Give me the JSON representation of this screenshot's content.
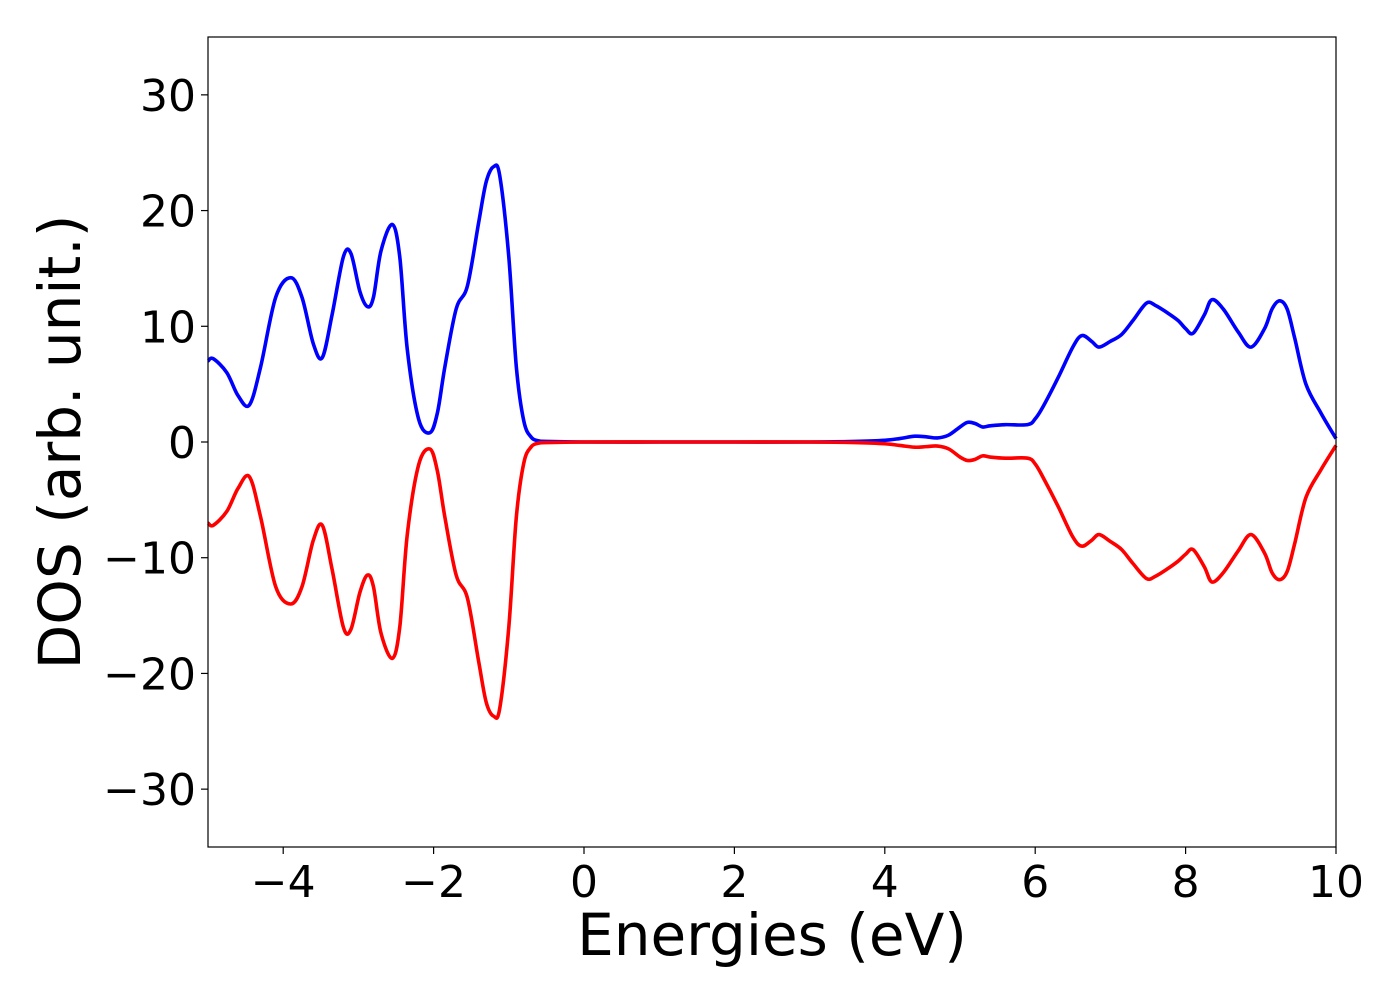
{
  "chart_data": {
    "type": "line",
    "xlabel": "Energies (eV)",
    "ylabel": "DOS (arb. unit.)",
    "xlim": [
      -5,
      10
    ],
    "ylim": [
      -35,
      35
    ],
    "x_ticks": [
      -4,
      -2,
      0,
      2,
      4,
      6,
      8,
      10
    ],
    "x_tick_labels": [
      "−4",
      "−2",
      "0",
      "2",
      "4",
      "6",
      "8",
      "10"
    ],
    "y_ticks": [
      30,
      20,
      10,
      0,
      -10,
      -20,
      -30
    ],
    "y_tick_labels": [
      "30",
      "20",
      "10",
      "0",
      "−10",
      "−20",
      "−30"
    ],
    "grid": false,
    "legend": "none",
    "series": [
      {
        "color": "#0000ff",
        "x": [
          -5.0,
          -4.93,
          -4.75,
          -4.6,
          -4.45,
          -4.3,
          -4.1,
          -3.9,
          -3.75,
          -3.6,
          -3.48,
          -3.35,
          -3.2,
          -3.1,
          -2.98,
          -2.88,
          -2.8,
          -2.7,
          -2.55,
          -2.45,
          -2.35,
          -2.2,
          -2.05,
          -1.95,
          -1.85,
          -1.7,
          -1.55,
          -1.4,
          -1.3,
          -1.2,
          -1.12,
          -1.0,
          -0.9,
          -0.8,
          -0.7,
          -0.6,
          -0.5,
          0.0,
          1.0,
          2.0,
          3.0,
          3.6,
          4.0,
          4.2,
          4.4,
          4.55,
          4.7,
          4.85,
          5.0,
          5.1,
          5.2,
          5.3,
          5.4,
          5.6,
          5.9,
          6.0,
          6.1,
          6.3,
          6.5,
          6.62,
          6.75,
          6.85,
          7.0,
          7.15,
          7.3,
          7.48,
          7.6,
          7.75,
          7.9,
          8.0,
          8.1,
          8.25,
          8.35,
          8.5,
          8.7,
          8.87,
          9.05,
          9.15,
          9.25,
          9.35,
          9.45,
          9.6,
          9.8,
          10.0
        ],
        "y": [
          7.0,
          7.2,
          6.0,
          4.0,
          3.2,
          6.5,
          12.5,
          14.2,
          12.5,
          8.5,
          7.3,
          11.0,
          16.0,
          16.3,
          13.0,
          11.7,
          12.5,
          16.5,
          18.8,
          16.0,
          8.0,
          2.0,
          0.8,
          2.5,
          6.5,
          11.5,
          13.5,
          19.0,
          22.5,
          23.8,
          23.0,
          16.0,
          6.5,
          1.8,
          0.4,
          0.1,
          0.05,
          0.0,
          0.0,
          0.0,
          0.0,
          0.05,
          0.15,
          0.3,
          0.5,
          0.45,
          0.35,
          0.6,
          1.3,
          1.7,
          1.6,
          1.3,
          1.4,
          1.5,
          1.5,
          2.0,
          3.0,
          5.5,
          8.2,
          9.2,
          8.7,
          8.2,
          8.7,
          9.3,
          10.5,
          12.0,
          11.8,
          11.2,
          10.5,
          9.8,
          9.4,
          11.0,
          12.3,
          11.5,
          9.5,
          8.2,
          9.8,
          11.5,
          12.2,
          11.5,
          9.0,
          5.0,
          2.5,
          0.3
        ]
      },
      {
        "color": "#ff0000",
        "x": [
          -5.0,
          -4.93,
          -4.75,
          -4.6,
          -4.45,
          -4.3,
          -4.1,
          -3.9,
          -3.75,
          -3.6,
          -3.48,
          -3.35,
          -3.2,
          -3.1,
          -2.98,
          -2.88,
          -2.8,
          -2.7,
          -2.55,
          -2.45,
          -2.35,
          -2.2,
          -2.05,
          -1.95,
          -1.85,
          -1.7,
          -1.55,
          -1.4,
          -1.3,
          -1.2,
          -1.12,
          -1.0,
          -0.9,
          -0.8,
          -0.7,
          -0.6,
          -0.5,
          0.0,
          1.0,
          2.0,
          3.0,
          3.6,
          4.0,
          4.2,
          4.4,
          4.55,
          4.7,
          4.85,
          5.0,
          5.1,
          5.2,
          5.3,
          5.4,
          5.6,
          5.9,
          6.0,
          6.1,
          6.3,
          6.5,
          6.62,
          6.75,
          6.85,
          7.0,
          7.15,
          7.3,
          7.48,
          7.6,
          7.75,
          7.9,
          8.0,
          8.1,
          8.25,
          8.35,
          8.5,
          8.7,
          8.87,
          9.05,
          9.15,
          9.25,
          9.35,
          9.45,
          9.6,
          9.8,
          10.0
        ],
        "y": [
          -7.0,
          -7.2,
          -6.0,
          -4.0,
          -3.0,
          -6.5,
          -12.5,
          -14.0,
          -12.5,
          -8.5,
          -7.2,
          -11.0,
          -16.0,
          -16.2,
          -13.0,
          -11.5,
          -12.5,
          -16.5,
          -18.7,
          -16.0,
          -8.0,
          -2.0,
          -0.6,
          -2.5,
          -6.5,
          -11.5,
          -13.5,
          -19.0,
          -22.5,
          -23.7,
          -23.0,
          -16.0,
          -6.5,
          -1.8,
          -0.4,
          -0.1,
          -0.05,
          0.0,
          0.0,
          0.0,
          0.0,
          -0.05,
          -0.15,
          -0.3,
          -0.45,
          -0.4,
          -0.35,
          -0.6,
          -1.3,
          -1.6,
          -1.5,
          -1.2,
          -1.3,
          -1.4,
          -1.4,
          -1.9,
          -3.0,
          -5.5,
          -8.2,
          -9.0,
          -8.5,
          -8.0,
          -8.6,
          -9.3,
          -10.5,
          -11.8,
          -11.6,
          -11.0,
          -10.3,
          -9.7,
          -9.3,
          -10.8,
          -12.1,
          -11.3,
          -9.4,
          -8.0,
          -9.6,
          -11.3,
          -11.9,
          -11.2,
          -8.8,
          -4.8,
          -2.4,
          -0.3
        ]
      }
    ]
  }
}
